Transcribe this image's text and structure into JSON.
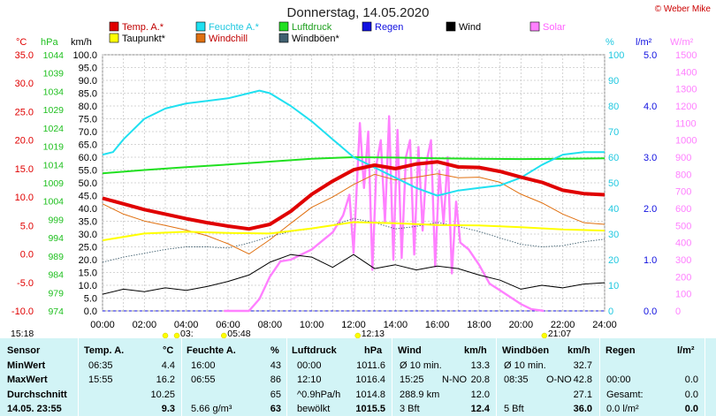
{
  "title": "Donnerstag, 14.05.2020",
  "credit": "© Weber Mike",
  "legend": [
    {
      "label": "Temp. A.*",
      "color": "#e00000"
    },
    {
      "label": "Feuchte A.*",
      "color": "#20e0f0"
    },
    {
      "label": "Luftdruck",
      "color": "#20e020"
    },
    {
      "label": "Regen",
      "color": "#1010e0"
    },
    {
      "label": "Wind",
      "color": "#000000"
    },
    {
      "label": "Solar",
      "color": "#ff80ff"
    },
    {
      "label": "Taupunkt*",
      "color": "#ffff00"
    },
    {
      "label": "Windchill",
      "color": "#e07010"
    },
    {
      "label": "Windböen*",
      "color": "#406070"
    }
  ],
  "axes_titles": {
    "temp": "°C",
    "hpa": "hPa",
    "kmh": "km/h",
    "pct": "%",
    "rain": "l/m²",
    "solar": "W/m²"
  },
  "temp_ticks": [
    "35.0",
    "30.0",
    "25.0",
    "20.0",
    "15.0",
    "10.0",
    "5.0",
    "0.0",
    "-5.0",
    "-10.0"
  ],
  "hpa_ticks": [
    "1044",
    "1039",
    "1034",
    "1029",
    "1024",
    "1019",
    "1014",
    "1009",
    "1004",
    "999",
    "994",
    "989",
    "984",
    "979",
    "974"
  ],
  "kmh_ticks": [
    "100.0",
    "95.0",
    "90.0",
    "85.0",
    "80.0",
    "75.0",
    "70.0",
    "65.0",
    "60.0",
    "55.0",
    "50.0",
    "45.0",
    "40.0",
    "35.0",
    "30.0",
    "25.0",
    "20.0",
    "15.0",
    "10.0",
    "5.0",
    "0.0"
  ],
  "pct_ticks": [
    "100",
    "90",
    "80",
    "70",
    "60",
    "50",
    "40",
    "30",
    "20",
    "10",
    "0"
  ],
  "rain_ticks": [
    "5.0",
    "4.0",
    "3.0",
    "2.0",
    "1.0",
    "0.0"
  ],
  "solar_ticks": [
    "1500",
    "1400",
    "1300",
    "1200",
    "1100",
    "1000",
    "900",
    "800",
    "700",
    "600",
    "500",
    "400",
    "300",
    "200",
    "100",
    "0"
  ],
  "x_ticks": [
    "00:00",
    "02:00",
    "04:00",
    "06:00",
    "08:00",
    "10:00",
    "12:00",
    "14:00",
    "16:00",
    "18:00",
    "20:00",
    "22:00",
    "24:00"
  ],
  "sun_marks": [
    {
      "label": "15:18",
      "h": 3.0
    },
    {
      "label": "03:",
      "h": 3.55
    },
    {
      "label": "05:48",
      "h": 5.8
    },
    {
      "label": "12:13",
      "h": 12.2
    },
    {
      "label": "21:07",
      "h": 21.12
    }
  ],
  "chart_data": {
    "type": "line",
    "x_unit": "hour of day",
    "xlim": [
      0,
      24
    ],
    "series": [
      {
        "name": "Temp. A.*",
        "unit": "°C",
        "axis": "temp",
        "x": [
          0,
          1,
          2,
          3,
          4,
          5,
          6,
          7,
          8,
          9,
          10,
          11,
          12,
          13,
          14,
          15,
          16,
          17,
          18,
          19,
          20,
          21,
          22,
          23,
          24
        ],
        "values": [
          9.8,
          8.8,
          7.8,
          7.0,
          6.2,
          5.5,
          4.9,
          4.4,
          5.2,
          7.5,
          10.5,
          12.8,
          14.8,
          15.6,
          15.0,
          15.8,
          16.2,
          15.3,
          15.2,
          14.5,
          13.5,
          12.6,
          11.2,
          10.6,
          10.4
        ]
      },
      {
        "name": "Feuchte A.*",
        "unit": "%",
        "axis": "pct",
        "x": [
          0,
          0.5,
          1,
          2,
          3,
          4,
          5,
          6,
          7,
          7.5,
          8,
          9,
          10,
          11,
          12,
          13,
          14,
          15,
          16,
          17,
          18,
          19,
          20,
          21,
          22,
          23,
          24
        ],
        "values": [
          61,
          62,
          67,
          75,
          79,
          81,
          82,
          83,
          85,
          86,
          85,
          80,
          74,
          67,
          60,
          56,
          52,
          48,
          45,
          47,
          48,
          49,
          52,
          57,
          61,
          62,
          62
        ]
      },
      {
        "name": "Luftdruck",
        "unit": "hPa",
        "axis": "hpa",
        "x": [
          0,
          2,
          4,
          6,
          8,
          10,
          12,
          14,
          16,
          18,
          20,
          22,
          24
        ],
        "values": [
          1011.6,
          1012.5,
          1013.3,
          1014.0,
          1014.8,
          1015.6,
          1016.0,
          1015.9,
          1015.7,
          1015.6,
          1015.5,
          1015.6,
          1015.7
        ]
      },
      {
        "name": "Taupunkt*",
        "unit": "°C",
        "axis": "temp",
        "x": [
          0,
          2,
          4,
          6,
          8,
          10,
          12,
          14,
          16,
          18,
          20,
          22,
          24
        ],
        "values": [
          2.4,
          3.6,
          3.9,
          3.7,
          3.6,
          4.5,
          5.6,
          5.4,
          5.1,
          5.0,
          4.7,
          4.3,
          4.1
        ]
      },
      {
        "name": "Windchill",
        "unit": "°C",
        "axis": "temp",
        "x": [
          0,
          1,
          2,
          3,
          4,
          5,
          6,
          7,
          8,
          9,
          10,
          11,
          12,
          13,
          14,
          15,
          16,
          17,
          18,
          19,
          20,
          21,
          22,
          23,
          24
        ],
        "values": [
          8.8,
          7.0,
          5.8,
          5.0,
          4.2,
          3.2,
          1.8,
          0.0,
          2.5,
          5.4,
          8.2,
          10.0,
          12.2,
          14.0,
          13.0,
          13.5,
          14.1,
          13.4,
          13.5,
          12.6,
          10.5,
          9.0,
          7.0,
          5.5,
          5.2
        ]
      },
      {
        "name": "Wind",
        "unit": "km/h",
        "axis": "kmh",
        "x": [
          0,
          1,
          2,
          3,
          4,
          5,
          6,
          7,
          8,
          9,
          10,
          11,
          12,
          13,
          14,
          15,
          16,
          17,
          18,
          19,
          20,
          21,
          22,
          23,
          24
        ],
        "values": [
          6.5,
          8.5,
          7.5,
          9.0,
          8.0,
          9.5,
          11.5,
          14.0,
          19.0,
          22.0,
          21.0,
          17.0,
          22.0,
          16.5,
          18.0,
          16.0,
          17.5,
          16.5,
          14.0,
          12.0,
          8.5,
          10.0,
          9.0,
          10.5,
          11.0
        ]
      },
      {
        "name": "Windböen*",
        "unit": "km/h",
        "axis": "kmh",
        "x": [
          0,
          1,
          2,
          3,
          4,
          5,
          6,
          7,
          8,
          9,
          10,
          11,
          12,
          13,
          14,
          15,
          16,
          17,
          18,
          19,
          20,
          21,
          22,
          23,
          24
        ],
        "values": [
          19.0,
          21.0,
          22.5,
          24.0,
          25.0,
          25.0,
          24.5,
          26.5,
          29.0,
          31.0,
          32.0,
          33.5,
          36.0,
          34.5,
          32.0,
          33.0,
          34.5,
          33.0,
          31.0,
          28.5,
          26.0,
          25.0,
          25.5,
          27.0,
          28.0
        ]
      },
      {
        "name": "Solar",
        "unit": "W/m²",
        "axis": "solar",
        "x": [
          5.8,
          7,
          7.5,
          8,
          8.5,
          9,
          10,
          10.5,
          11,
          11.5,
          11.8,
          12,
          12.3,
          12.5,
          12.7,
          12.9,
          13.1,
          13.3,
          13.5,
          13.7,
          13.9,
          14.1,
          14.3,
          14.5,
          14.7,
          14.9,
          15.1,
          15.3,
          15.5,
          15.7,
          15.9,
          16.1,
          16.3,
          16.5,
          16.7,
          16.9,
          17.1,
          17.5,
          18,
          18.5,
          19,
          19.5,
          20,
          20.5,
          21.1
        ],
        "values": [
          0,
          0,
          70,
          200,
          290,
          300,
          360,
          410,
          460,
          560,
          680,
          340,
          1100,
          720,
          1050,
          240,
          860,
          1000,
          520,
          1140,
          300,
          1060,
          310,
          900,
          1000,
          330,
          960,
          470,
          880,
          1000,
          260,
          820,
          510,
          900,
          220,
          640,
          400,
          360,
          270,
          160,
          120,
          80,
          40,
          10,
          0
        ]
      },
      {
        "name": "Regen",
        "unit": "l/m²",
        "axis": "rain",
        "x": [
          0,
          24
        ],
        "values": [
          0.0,
          0.0
        ]
      }
    ]
  },
  "table": {
    "headers": {
      "sensor": "Sensor",
      "temp": "Temp. A.",
      "temp_unit": "°C",
      "hum": "Feuchte A.",
      "hum_unit": "%",
      "press": "Luftdruck",
      "press_unit": "hPa",
      "wind": "Wind",
      "wind_unit": "km/h",
      "gust": "Windböen",
      "gust_unit": "km/h",
      "rain": "Regen",
      "rain_unit": "l/m²"
    },
    "rows": [
      {
        "label": "MinWert",
        "temp_time": "06:35",
        "temp_val": "4.4",
        "hum_time": "16:00",
        "hum_val": "43",
        "press_time": "00:00",
        "press_val": "1011.6",
        "wind_a": "Ø 10 min.",
        "wind_b": "13.3",
        "gust_a": "Ø 10 min.",
        "gust_b": "32.7",
        "rain_a": "",
        "rain_b": ""
      },
      {
        "label": "MaxWert",
        "temp_time": "15:55",
        "temp_val": "16.2",
        "hum_time": "06:55",
        "hum_val": "86",
        "press_time": "12:10",
        "press_val": "1016.4",
        "wind_a": "15:25",
        "wind_dir": "N-NO",
        "wind_b": "20.8",
        "gust_a": "08:35",
        "gust_dir": "O-NO",
        "gust_b": "42.8",
        "rain_a": "00:00",
        "rain_b": "0.0"
      },
      {
        "label": "Durchschnitt",
        "temp_time": "",
        "temp_val": "10.25",
        "hum_time": "",
        "hum_val": "65",
        "press_time": "^0.9hPa/h",
        "press_val": "1014.8",
        "wind_a": "288.9 km",
        "wind_b": "12.0",
        "gust_a": "",
        "gust_b": "27.1",
        "rain_a": "Gesamt:",
        "rain_b": "0.0"
      },
      {
        "label": "14.05. 23:55",
        "temp_time": "",
        "temp_val": "9.3",
        "hum_time": "5.66 g/m³",
        "hum_val": "63",
        "press_time": "bewölkt",
        "press_val": "1015.5",
        "wind_a": "3 Bft",
        "wind_b": "12.4",
        "gust_a": "5 Bft",
        "gust_b": "36.0",
        "rain_a": "0.0 l/m²",
        "rain_b": "0.0"
      }
    ]
  }
}
